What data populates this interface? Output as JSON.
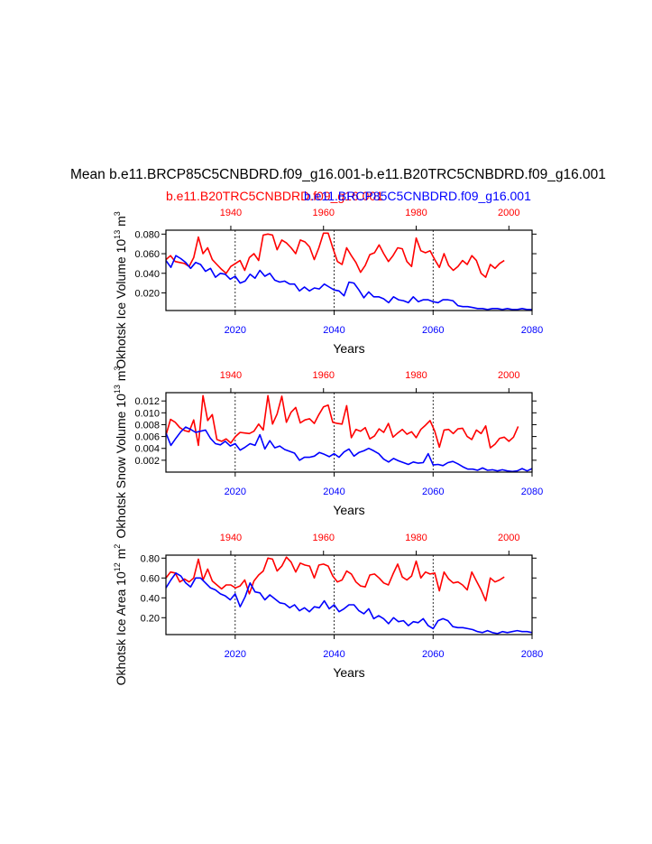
{
  "figure": {
    "title": "Mean b.e11.BRCP85C5CNBDRD.f09_g16.001-b.e11.B20TRC5CNBDRD.f09_g16.001",
    "legend_red": "b.e11.B20TRC5CNBDRD.f09_g16.001",
    "legend_blue": "b.e11.BRCP85C5CNBDRD.f09_g16.001",
    "red_color": "#ff0000",
    "blue_color": "#0000ff"
  },
  "chart_data": [
    {
      "type": "line",
      "name": "ice-volume",
      "ylabel": "Okhotsk Ice Volume 10^13 m^3",
      "ylabel_main": "Okhotsk Ice Volume 10",
      "ylabel_exp": "13",
      "ylabel_unit": "m",
      "ylabel_unit_exp": "3",
      "xlabel": "Years",
      "ylim": [
        0.002,
        0.084
      ],
      "yticks": [
        0.02,
        0.04,
        0.06,
        0.08
      ],
      "ytick_labels": [
        "0.020",
        "0.040",
        "0.060",
        "0.080"
      ],
      "bottom_xlim": [
        2006,
        2080
      ],
      "bottom_xticks": [
        2020,
        2040,
        2060,
        2080
      ],
      "top_xlim": [
        1926,
        2005
      ],
      "top_xticks": [
        1940,
        1960,
        1980,
        2000
      ],
      "vlines": [
        2020,
        2040,
        2060
      ],
      "series": [
        {
          "name": "b.e11.B20TRC5CNBDRD.f09_g16.001",
          "axis": "top",
          "color": "#ff0000",
          "x_start": 1926,
          "x_step": 1,
          "values": [
            0.054,
            0.058,
            0.052,
            0.051,
            0.05,
            0.047,
            0.056,
            0.077,
            0.06,
            0.066,
            0.054,
            0.049,
            0.044,
            0.04,
            0.047,
            0.05,
            0.053,
            0.043,
            0.056,
            0.06,
            0.053,
            0.079,
            0.08,
            0.079,
            0.064,
            0.074,
            0.071,
            0.066,
            0.06,
            0.074,
            0.072,
            0.067,
            0.054,
            0.066,
            0.081,
            0.081,
            0.066,
            0.052,
            0.049,
            0.066,
            0.058,
            0.051,
            0.041,
            0.048,
            0.059,
            0.061,
            0.069,
            0.06,
            0.052,
            0.058,
            0.066,
            0.065,
            0.052,
            0.047,
            0.076,
            0.063,
            0.061,
            0.063,
            0.054,
            0.046,
            0.06,
            0.048,
            0.043,
            0.047,
            0.053,
            0.049,
            0.058,
            0.053,
            0.04,
            0.036,
            0.049,
            0.045,
            0.05,
            0.053
          ]
        },
        {
          "name": "b.e11.BRCP85C5CNBDRD.f09_g16.001",
          "axis": "bottom",
          "color": "#0000ff",
          "x_start": 2006,
          "x_step": 1,
          "values": [
            0.053,
            0.046,
            0.058,
            0.055,
            0.051,
            0.045,
            0.051,
            0.049,
            0.042,
            0.045,
            0.036,
            0.04,
            0.039,
            0.034,
            0.037,
            0.03,
            0.032,
            0.039,
            0.035,
            0.043,
            0.037,
            0.04,
            0.033,
            0.031,
            0.032,
            0.029,
            0.029,
            0.022,
            0.026,
            0.022,
            0.025,
            0.024,
            0.029,
            0.026,
            0.023,
            0.022,
            0.017,
            0.031,
            0.03,
            0.023,
            0.015,
            0.021,
            0.016,
            0.016,
            0.014,
            0.01,
            0.016,
            0.013,
            0.012,
            0.01,
            0.016,
            0.011,
            0.013,
            0.013,
            0.011,
            0.01,
            0.013,
            0.013,
            0.012,
            0.007,
            0.006,
            0.006,
            0.005,
            0.004,
            0.004,
            0.003,
            0.004,
            0.004,
            0.003,
            0.004,
            0.003,
            0.003,
            0.004,
            0.003,
            0.003
          ]
        }
      ]
    },
    {
      "type": "line",
      "name": "snow-volume",
      "ylabel": "Okhotsk Snow Volume 10^13 m^3",
      "ylabel_main": "Okhotsk Snow Volume 10",
      "ylabel_exp": "13",
      "ylabel_unit": "m",
      "ylabel_unit_exp": "3",
      "xlabel": "Years",
      "ylim": [
        0.0,
        0.0134
      ],
      "yticks": [
        0.002,
        0.004,
        0.006,
        0.008,
        0.01,
        0.012
      ],
      "ytick_labels": [
        "0.002",
        "0.004",
        "0.006",
        "0.008",
        "0.010",
        "0.012"
      ],
      "bottom_xlim": [
        2006,
        2080
      ],
      "bottom_xticks": [
        2020,
        2040,
        2060,
        2080
      ],
      "top_xlim": [
        1926,
        2005
      ],
      "top_xticks": [
        1940,
        1960,
        1980,
        2000
      ],
      "vlines": [
        2020,
        2040,
        2060
      ],
      "series": [
        {
          "name": "b.e11.B20TRC5CNBDRD.f09_g16.001",
          "axis": "top",
          "color": "#ff0000",
          "x_start": 1926,
          "x_step": 1,
          "values": [
            0.0062,
            0.0089,
            0.0084,
            0.0075,
            0.007,
            0.0068,
            0.0088,
            0.0045,
            0.0129,
            0.0087,
            0.0097,
            0.0055,
            0.0052,
            0.0056,
            0.0049,
            0.006,
            0.0067,
            0.0066,
            0.0065,
            0.0069,
            0.0081,
            0.0071,
            0.0129,
            0.0081,
            0.0098,
            0.0128,
            0.0084,
            0.0101,
            0.0109,
            0.0083,
            0.0088,
            0.009,
            0.0082,
            0.0097,
            0.011,
            0.0113,
            0.0084,
            0.0082,
            0.0081,
            0.0112,
            0.0058,
            0.0072,
            0.0069,
            0.0075,
            0.0056,
            0.0061,
            0.0073,
            0.0067,
            0.0082,
            0.0059,
            0.0066,
            0.0072,
            0.0064,
            0.0068,
            0.0058,
            0.0072,
            0.0079,
            0.0087,
            0.0069,
            0.0042,
            0.0071,
            0.0072,
            0.0065,
            0.0073,
            0.0074,
            0.006,
            0.0055,
            0.0071,
            0.0065,
            0.0078,
            0.0041,
            0.0047,
            0.0057,
            0.0059,
            0.0052,
            0.0059,
            0.0077
          ]
        },
        {
          "name": "b.e11.BRCP85C5CNBDRD.f09_g16.001",
          "axis": "bottom",
          "color": "#0000ff",
          "x_start": 2006,
          "x_step": 1,
          "values": [
            0.0066,
            0.0045,
            0.0057,
            0.0068,
            0.0076,
            0.0072,
            0.0067,
            0.0069,
            0.0071,
            0.0057,
            0.0048,
            0.0046,
            0.0052,
            0.0044,
            0.0048,
            0.0037,
            0.0042,
            0.0048,
            0.0045,
            0.0063,
            0.0039,
            0.0053,
            0.0041,
            0.0044,
            0.0038,
            0.0035,
            0.0032,
            0.002,
            0.0025,
            0.0025,
            0.0027,
            0.0033,
            0.003,
            0.0026,
            0.0031,
            0.0025,
            0.0034,
            0.0039,
            0.0027,
            0.0033,
            0.0036,
            0.004,
            0.0036,
            0.0031,
            0.0022,
            0.0017,
            0.0023,
            0.0019,
            0.0016,
            0.0013,
            0.0017,
            0.0015,
            0.0016,
            0.0031,
            0.0012,
            0.0013,
            0.0011,
            0.0016,
            0.0018,
            0.0014,
            0.0009,
            0.0005,
            0.0005,
            0.0003,
            0.0007,
            0.0003,
            0.0004,
            0.0002,
            0.0004,
            0.0002,
            0.0001,
            0.0002,
            0.0006,
            0.0002,
            0.0006
          ]
        }
      ]
    },
    {
      "type": "line",
      "name": "ice-area",
      "ylabel": "Okhotsk Ice Area 10^12 m^2",
      "ylabel_main": "Okhotsk Ice Area 10",
      "ylabel_exp": "12",
      "ylabel_unit": "m",
      "ylabel_unit_exp": "2",
      "xlabel": "Years",
      "ylim": [
        0.03,
        0.83
      ],
      "yticks": [
        0.2,
        0.4,
        0.6,
        0.8
      ],
      "ytick_labels": [
        "0.20",
        "0.40",
        "0.60",
        "0.80"
      ],
      "bottom_xlim": [
        2006,
        2080
      ],
      "bottom_xticks": [
        2020,
        2040,
        2060,
        2080
      ],
      "top_xlim": [
        1926,
        2005
      ],
      "top_xticks": [
        1940,
        1960,
        1980,
        2000
      ],
      "vlines": [
        2020,
        2040,
        2060
      ],
      "series": [
        {
          "name": "b.e11.B20TRC5CNBDRD.f09_g16.001",
          "axis": "top",
          "color": "#ff0000",
          "x_start": 1926,
          "x_step": 1,
          "values": [
            0.6,
            0.66,
            0.65,
            0.56,
            0.59,
            0.56,
            0.6,
            0.79,
            0.58,
            0.69,
            0.57,
            0.53,
            0.49,
            0.53,
            0.53,
            0.5,
            0.52,
            0.58,
            0.44,
            0.57,
            0.63,
            0.67,
            0.8,
            0.79,
            0.67,
            0.72,
            0.81,
            0.76,
            0.66,
            0.75,
            0.73,
            0.72,
            0.6,
            0.73,
            0.74,
            0.72,
            0.62,
            0.56,
            0.58,
            0.67,
            0.64,
            0.56,
            0.52,
            0.51,
            0.63,
            0.64,
            0.6,
            0.55,
            0.53,
            0.64,
            0.74,
            0.61,
            0.58,
            0.62,
            0.77,
            0.6,
            0.66,
            0.64,
            0.65,
            0.47,
            0.66,
            0.59,
            0.55,
            0.56,
            0.53,
            0.48,
            0.66,
            0.57,
            0.48,
            0.37,
            0.6,
            0.56,
            0.58,
            0.61
          ]
        },
        {
          "name": "b.e11.BRCP85C5CNBDRD.f09_g16.001",
          "axis": "bottom",
          "color": "#0000ff",
          "x_start": 2006,
          "x_step": 1,
          "values": [
            0.5,
            0.58,
            0.65,
            0.62,
            0.55,
            0.51,
            0.6,
            0.6,
            0.55,
            0.5,
            0.48,
            0.44,
            0.42,
            0.38,
            0.44,
            0.31,
            0.41,
            0.55,
            0.46,
            0.45,
            0.38,
            0.43,
            0.39,
            0.35,
            0.34,
            0.3,
            0.33,
            0.27,
            0.3,
            0.26,
            0.31,
            0.3,
            0.37,
            0.29,
            0.33,
            0.26,
            0.29,
            0.33,
            0.33,
            0.27,
            0.24,
            0.29,
            0.19,
            0.22,
            0.19,
            0.14,
            0.2,
            0.16,
            0.17,
            0.12,
            0.16,
            0.15,
            0.19,
            0.12,
            0.09,
            0.17,
            0.19,
            0.17,
            0.11,
            0.1,
            0.1,
            0.09,
            0.08,
            0.06,
            0.05,
            0.07,
            0.05,
            0.04,
            0.06,
            0.05,
            0.06,
            0.07,
            0.06,
            0.06,
            0.05
          ]
        }
      ]
    }
  ]
}
